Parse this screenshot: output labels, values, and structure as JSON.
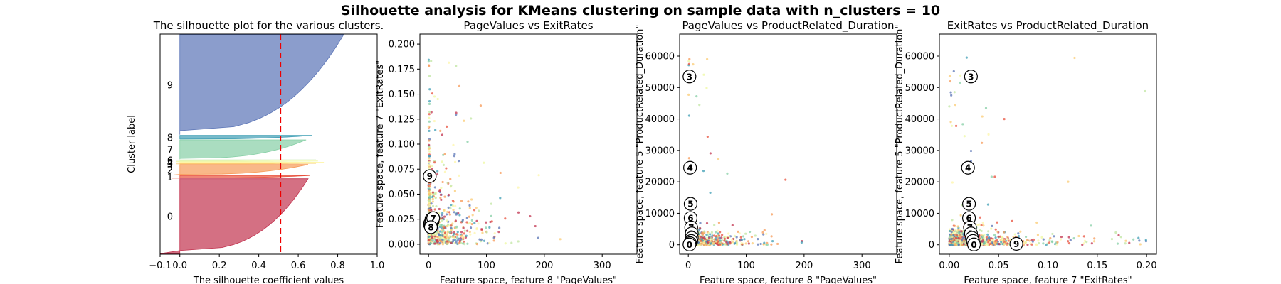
{
  "suptitle": "Silhouette analysis for KMeans clustering on sample data with n_clusters = 10",
  "colors": {
    "0": "#c2334f",
    "1": "#e8503c",
    "2": "#f79a57",
    "3": "#fbcb73",
    "4": "#fef5a8",
    "5": "#eef8a0",
    "6": "#c0e6a1",
    "7": "#86cfa5",
    "8": "#3d9db4",
    "9": "#5a74b6",
    "avg_line": "#ee0000"
  },
  "chart_data": [
    {
      "type": "silhouette",
      "title": "The silhouette plot for the various clusters.",
      "xlabel": "The silhouette coefficient values",
      "ylabel": "Cluster label",
      "xlim": [
        -0.1,
        1.0
      ],
      "xticks": [
        "−0.1",
        "0.0",
        "0.2",
        "0.4",
        "0.6",
        "0.8",
        "1.0"
      ],
      "xtick_values": [
        -0.1,
        0.0,
        0.2,
        0.4,
        0.6,
        0.8,
        1.0
      ],
      "average_silhouette": 0.51,
      "clusters": [
        {
          "label": "0",
          "size": 1160,
          "max": 0.65,
          "min": -0.1,
          "color_key": "0"
        },
        {
          "label": "1",
          "size": 40,
          "max": 0.66,
          "min": -0.04,
          "color_key": "1"
        },
        {
          "label": "2",
          "size": 160,
          "max": 0.65,
          "min": -0.03,
          "color_key": "2"
        },
        {
          "label": "3",
          "size": 8,
          "max": 0.69,
          "min": -0.02,
          "color_key": "3"
        },
        {
          "label": "4",
          "size": 8,
          "max": 0.73,
          "min": -0.02,
          "color_key": "4"
        },
        {
          "label": "5",
          "size": 8,
          "max": 0.7,
          "min": -0.02,
          "color_key": "5"
        },
        {
          "label": "6",
          "size": 8,
          "max": 0.69,
          "min": -0.02,
          "color_key": "6"
        },
        {
          "label": "7",
          "size": 300,
          "max": 0.64,
          "min": 0.0,
          "color_key": "7"
        },
        {
          "label": "8",
          "size": 60,
          "max": 0.67,
          "min": 0.0,
          "color_key": "8"
        },
        {
          "label": "9",
          "size": 1550,
          "max": 0.83,
          "min": 0.0,
          "color_key": "9"
        }
      ]
    },
    {
      "type": "scatter",
      "title": "PageValues vs ExitRates",
      "xlabel": "Feature space, feature 8 \"PageValues\"",
      "ylabel": "Feature space, feature 7 \"ExitRates\"",
      "xlim": [
        -15,
        360
      ],
      "ylim": [
        -0.01,
        0.21
      ],
      "xticks": [
        0,
        100,
        200,
        300
      ],
      "yticks": [
        0.0,
        0.025,
        0.05,
        0.075,
        0.1,
        0.125,
        0.15,
        0.175,
        0.2
      ],
      "ytick_labels": [
        "0.000",
        "0.025",
        "0.050",
        "0.075",
        "0.100",
        "0.125",
        "0.150",
        "0.175",
        "0.200"
      ],
      "centers": [
        {
          "label": "0",
          "x": 2,
          "y": 0.02
        },
        {
          "label": "1",
          "x": 3,
          "y": 0.021
        },
        {
          "label": "2",
          "x": 4,
          "y": 0.019
        },
        {
          "label": "3",
          "x": 5,
          "y": 0.025
        },
        {
          "label": "4",
          "x": 6,
          "y": 0.024
        },
        {
          "label": "5",
          "x": 7,
          "y": 0.023
        },
        {
          "label": "6",
          "x": 5,
          "y": 0.022
        },
        {
          "label": "7",
          "x": 8,
          "y": 0.026
        },
        {
          "label": "8",
          "x": 4,
          "y": 0.017
        },
        {
          "label": "9",
          "x": 2,
          "y": 0.068
        }
      ]
    },
    {
      "type": "scatter",
      "title": "PageValues vs ProductRelated_Duration",
      "xlabel": "Feature space, feature 8 \"PageValues\"",
      "ylabel": "Feature space, feature 5 \"ProductRelated_Duration\"",
      "xlim": [
        -15,
        360
      ],
      "ylim": [
        -3000,
        67000
      ],
      "xticks": [
        0,
        100,
        200,
        300
      ],
      "yticks": [
        0,
        10000,
        20000,
        30000,
        40000,
        50000,
        60000
      ],
      "centers": [
        {
          "label": "3",
          "x": 2,
          "y": 53500
        },
        {
          "label": "4",
          "x": 3,
          "y": 24500
        },
        {
          "label": "5",
          "x": 4,
          "y": 13000
        },
        {
          "label": "6",
          "x": 4,
          "y": 8500
        },
        {
          "label": "7",
          "x": 5,
          "y": 5500
        },
        {
          "label": "2",
          "x": 6,
          "y": 3600
        },
        {
          "label": "8",
          "x": 6,
          "y": 2200
        },
        {
          "label": "1",
          "x": 5,
          "y": 1200
        },
        {
          "label": "9",
          "x": 3,
          "y": 500
        },
        {
          "label": "0",
          "x": 2,
          "y": 100
        }
      ]
    },
    {
      "type": "scatter",
      "title": "ExitRates vs ProductRelated_Duration",
      "xlabel": "Feature space, feature 7 \"ExitRates\"",
      "ylabel": "Feature space, feature 5 \"ProductRelated_Duration\"",
      "xlim": [
        -0.01,
        0.21
      ],
      "ylim": [
        -3000,
        67000
      ],
      "xticks": [
        0.0,
        0.05,
        0.1,
        0.15,
        0.2
      ],
      "xtick_labels": [
        "0.00",
        "0.05",
        "0.10",
        "0.15",
        "0.20"
      ],
      "yticks": [
        0,
        10000,
        20000,
        30000,
        40000,
        50000,
        60000
      ],
      "centers": [
        {
          "label": "3",
          "x": 0.022,
          "y": 53500
        },
        {
          "label": "4",
          "x": 0.019,
          "y": 24500
        },
        {
          "label": "5",
          "x": 0.02,
          "y": 13000
        },
        {
          "label": "6",
          "x": 0.02,
          "y": 8500
        },
        {
          "label": "7",
          "x": 0.021,
          "y": 5500
        },
        {
          "label": "2",
          "x": 0.022,
          "y": 3600
        },
        {
          "label": "8",
          "x": 0.023,
          "y": 2200
        },
        {
          "label": "1",
          "x": 0.024,
          "y": 1200
        },
        {
          "label": "0",
          "x": 0.025,
          "y": 100
        },
        {
          "label": "9",
          "x": 0.068,
          "y": 300
        }
      ]
    }
  ]
}
